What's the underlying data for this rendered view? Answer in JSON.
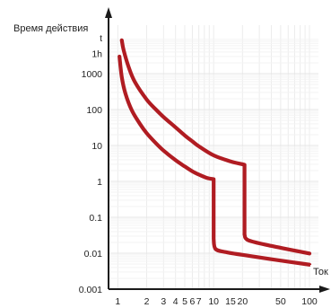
{
  "chart_data": {
    "type": "line",
    "title": "",
    "xlabel": "Ток",
    "ylabel": "Время действия",
    "x_scale": "log",
    "y_scale": "log",
    "xlim": [
      0.8,
      100
    ],
    "ylim": [
      0.001,
      10000
    ],
    "grid": true,
    "x_ticks": [
      {
        "value": 1,
        "label": "1"
      },
      {
        "value": 2,
        "label": "2"
      },
      {
        "value": 3,
        "label": "3"
      },
      {
        "value": 4,
        "label": "4"
      },
      {
        "value": 5,
        "label": "5"
      },
      {
        "value": 6,
        "label": "6"
      },
      {
        "value": 7,
        "label": "7"
      },
      {
        "value": 10,
        "label": "10"
      },
      {
        "value": 15,
        "label": "15"
      },
      {
        "value": 20,
        "label": "20"
      },
      {
        "value": 50,
        "label": "50"
      },
      {
        "value": 100,
        "label": "100"
      }
    ],
    "y_ticks": [
      {
        "value": 0.001,
        "label": "0.001"
      },
      {
        "value": 0.01,
        "label": "0.01"
      },
      {
        "value": 0.1,
        "label": "0.1"
      },
      {
        "value": 1,
        "label": "1"
      },
      {
        "value": 10,
        "label": "10"
      },
      {
        "value": 100,
        "label": "100"
      },
      {
        "value": 1000,
        "label": "1000"
      },
      {
        "value": 3600,
        "label": "1h"
      },
      {
        "value": 10000,
        "label": "t"
      }
    ],
    "series": [
      {
        "color": "#b01c22",
        "points": [
          [
            1.04,
            3000
          ],
          [
            1.1,
            800
          ],
          [
            1.2,
            280
          ],
          [
            1.4,
            95
          ],
          [
            1.7,
            40
          ],
          [
            2,
            22
          ],
          [
            2.5,
            11.5
          ],
          [
            3,
            7.2
          ],
          [
            4,
            3.9
          ],
          [
            5,
            2.6
          ],
          [
            6,
            1.9
          ],
          [
            7,
            1.55
          ],
          [
            8.5,
            1.25
          ],
          [
            10,
            1.15
          ],
          [
            10,
            0.025
          ],
          [
            10.5,
            0.013
          ],
          [
            14,
            0.0105
          ],
          [
            20,
            0.009
          ],
          [
            40,
            0.0068
          ],
          [
            100,
            0.0048
          ]
        ]
      },
      {
        "color": "#b01c22",
        "points": [
          [
            1.1,
            8500
          ],
          [
            1.15,
            4500
          ],
          [
            1.3,
            1500
          ],
          [
            1.5,
            600
          ],
          [
            2,
            190
          ],
          [
            2.5,
            100
          ],
          [
            3,
            62
          ],
          [
            4,
            32
          ],
          [
            5,
            19
          ],
          [
            6,
            13
          ],
          [
            7,
            9.5
          ],
          [
            10,
            5.3
          ],
          [
            15,
            3.6
          ],
          [
            20,
            3.0
          ],
          [
            21,
            2.9
          ],
          [
            21,
            0.033
          ],
          [
            23,
            0.023
          ],
          [
            40,
            0.016
          ],
          [
            100,
            0.0098
          ]
        ]
      }
    ]
  }
}
